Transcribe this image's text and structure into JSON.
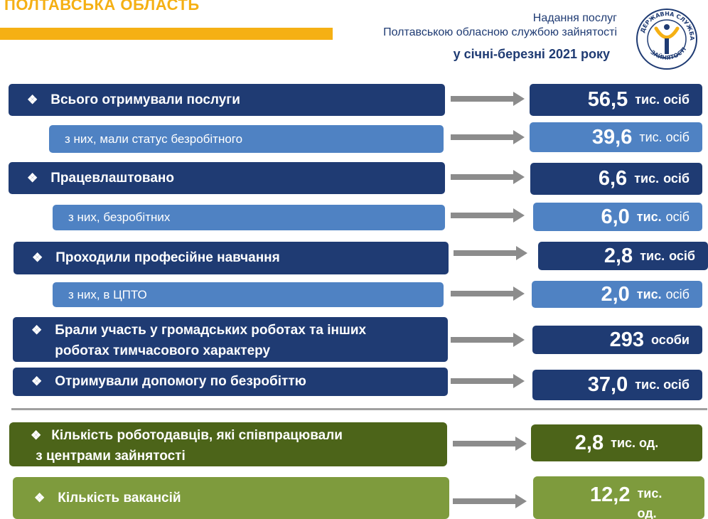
{
  "header": {
    "region": "ПОЛТАВСЬКА ОБЛАСТЬ",
    "line1": "Надання послуг",
    "line2": "Полтавською обласною службою зайнятості",
    "period": "у  січні-березні 2021 року",
    "logo_text": "ДЕРЖАВНА СЛУЖБА ЗАЙНЯТОСТІ"
  },
  "rows": [
    {
      "label": "Всього отримували послуги",
      "value": "56,5",
      "unit": "тис. осіб"
    },
    {
      "label": "з них, мали статус безробітного",
      "value": "39,6",
      "unit": "тис. осіб"
    },
    {
      "label": "Працевлаштовано",
      "value": "6,6",
      "unit_bold": "тис.",
      "unit": "осіб"
    },
    {
      "label": "з них, безробітних",
      "value": "6,0",
      "unit_bold": "тис.",
      "unit": "осіб"
    },
    {
      "label": "Проходили професійне навчання",
      "value": "2,8",
      "unit_bold": "тис.",
      "unit": "осіб"
    },
    {
      "label": "з них, в ЦПТО",
      "value": "2,0",
      "unit_bold": "тис.",
      "unit": "осіб"
    },
    {
      "label_line1": "Брали участь у громадських роботах та інших",
      "label_line2": "роботах тимчасового характеру",
      "value": "293",
      "unit": "особи"
    },
    {
      "label": "Отримували допомогу по безробіттю",
      "value": "37,0",
      "unit": "тис. осіб"
    },
    {
      "label_line1": "Кількість роботодавців, які співпрацювали",
      "label_line2": "з центрами зайнятості",
      "value": "2,8",
      "unit": "тис. од."
    },
    {
      "label": "Кількість вакансій",
      "value": "12,2",
      "unit": "тис.",
      "unit2": "од."
    }
  ],
  "colors": {
    "dark": "#1f3b73",
    "light": "#4f82c3",
    "olive_dark": "#4c6419",
    "olive": "#7e9b3d",
    "accent": "#f5b014",
    "arrow": "#8c8c8c"
  }
}
